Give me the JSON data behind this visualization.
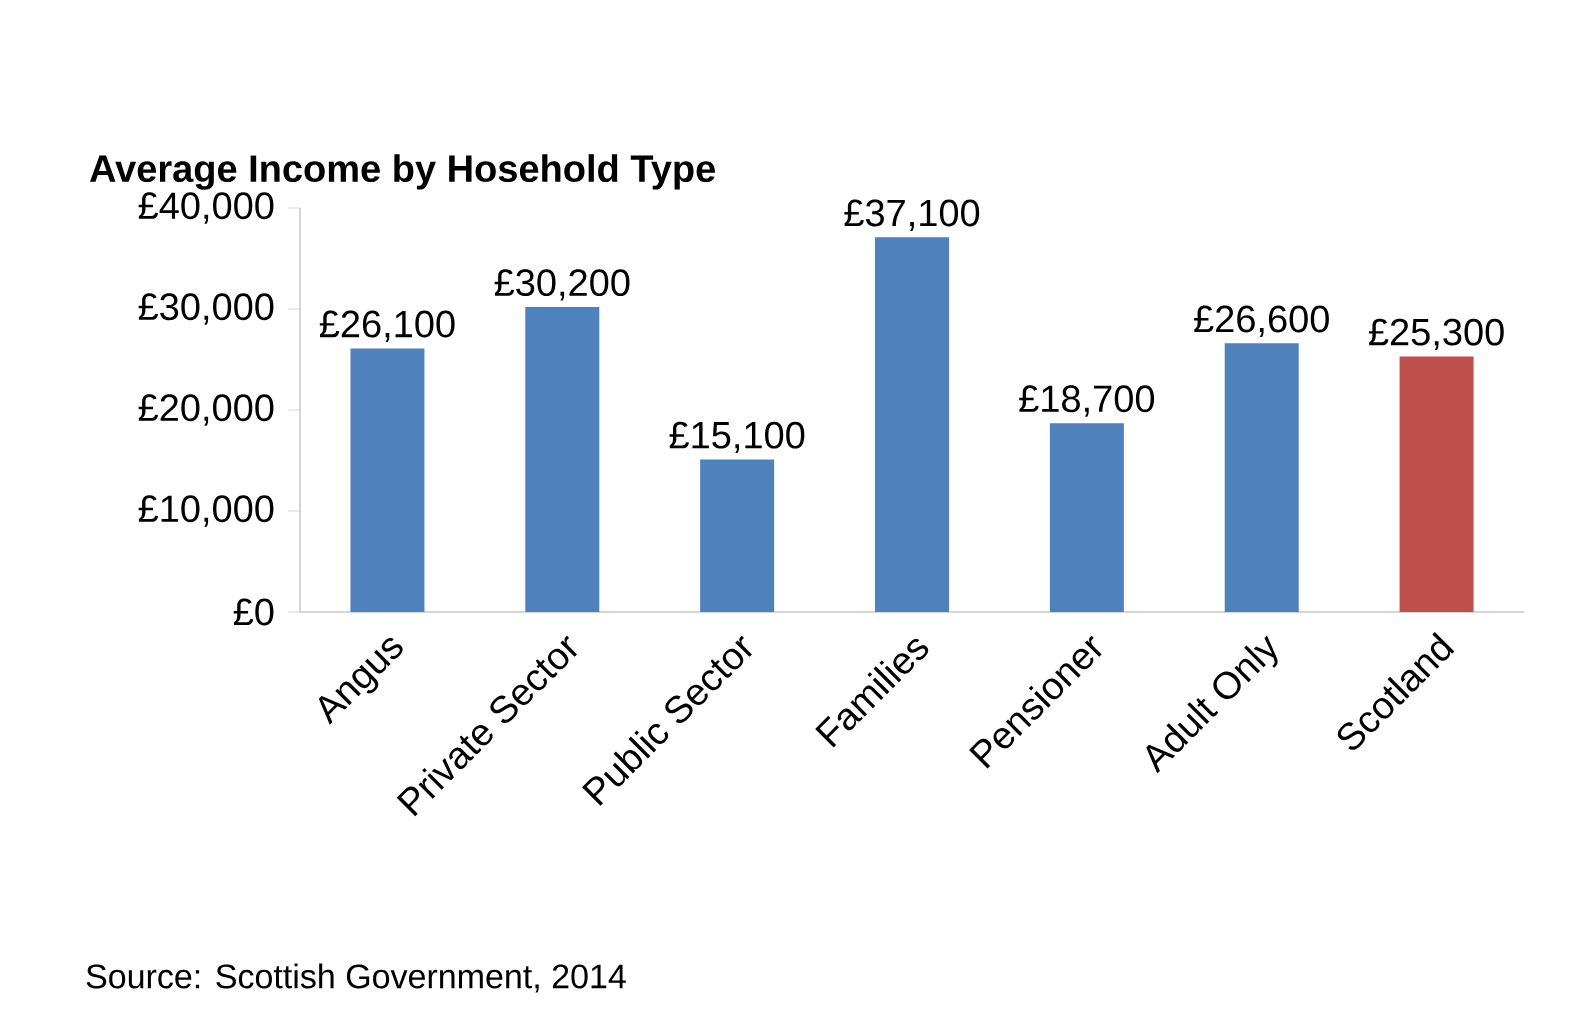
{
  "chart_data": {
    "type": "bar",
    "title": "Average Income by Hosehold Type",
    "categories": [
      "Angus",
      "Private Sector",
      "Public Sector",
      "Families",
      "Pensioner",
      "Adult Only",
      "Scotland"
    ],
    "values": [
      26100,
      30200,
      15100,
      37100,
      18700,
      26600,
      25300
    ],
    "colors": [
      "#4f81bd",
      "#4f81bd",
      "#4f81bd",
      "#4f81bd",
      "#4f81bd",
      "#4f81bd",
      "#c0504d"
    ],
    "value_labels": [
      "£26,100",
      "£30,200",
      "£15,100",
      "£37,100",
      "£18,700",
      "£26,600",
      "£25,300"
    ],
    "ylim": [
      0,
      40000
    ],
    "yticks": [
      {
        "value": 0,
        "label": "£0"
      },
      {
        "value": 10000,
        "label": "£10,000"
      },
      {
        "value": 20000,
        "label": "£20,000"
      },
      {
        "value": 30000,
        "label": "£30,000"
      },
      {
        "value": 40000,
        "label": "£40,000"
      }
    ],
    "grid": false,
    "annotations": [
      "Source: Scottish Government, 2014"
    ]
  }
}
